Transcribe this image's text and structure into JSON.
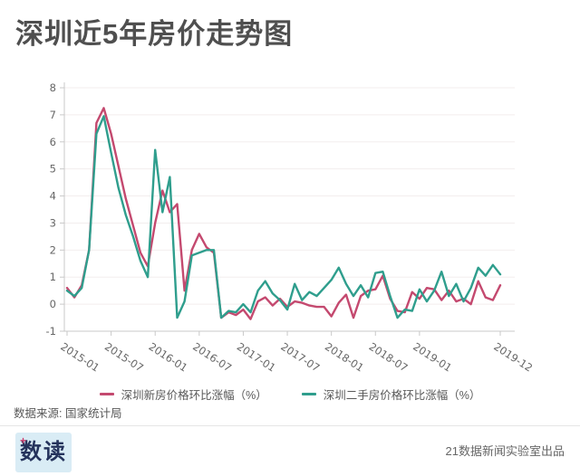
{
  "title": "深圳近5年房价走势图",
  "source_note": "数据来源: 国家统计局",
  "footer": {
    "logo_text": "数读",
    "logo_accent": "+",
    "credit": "21数据新闻实验室出品"
  },
  "colors": {
    "new_homes_line": "#c4496f",
    "secondhand_line": "#2f9e8d",
    "grid_line": "#f3eeee",
    "axis_line": "#c9c9c9",
    "tick_text": "#666666",
    "title_text": "#4f4f4f"
  },
  "chart_data": {
    "type": "line",
    "title": "深圳近5年房价走势图",
    "xlabel": "",
    "ylabel": "",
    "ylim": [
      -1,
      8
    ],
    "y_ticks": [
      -1,
      0,
      1,
      2,
      3,
      4,
      5,
      6,
      7,
      8
    ],
    "grid": "horizontal",
    "legend_position": "bottom-center",
    "x": [
      "2015-01",
      "2015-02",
      "2015-03",
      "2015-04",
      "2015-05",
      "2015-06",
      "2015-07",
      "2015-08",
      "2015-09",
      "2015-10",
      "2015-11",
      "2015-12",
      "2016-01",
      "2016-02",
      "2016-03",
      "2016-04",
      "2016-05",
      "2016-06",
      "2016-07",
      "2016-08",
      "2016-09",
      "2016-10",
      "2016-11",
      "2016-12",
      "2017-01",
      "2017-02",
      "2017-03",
      "2017-04",
      "2017-05",
      "2017-06",
      "2017-07",
      "2017-08",
      "2017-09",
      "2017-10",
      "2017-11",
      "2017-12",
      "2018-01",
      "2018-02",
      "2018-03",
      "2018-04",
      "2018-05",
      "2018-06",
      "2018-07",
      "2018-08",
      "2018-09",
      "2018-10",
      "2018-11",
      "2018-12",
      "2019-01",
      "2019-02",
      "2019-03",
      "2019-04",
      "2019-05",
      "2019-06",
      "2019-07",
      "2019-08",
      "2019-09",
      "2019-10",
      "2019-11",
      "2019-12"
    ],
    "x_tick_labels": [
      "2015-01",
      "2015-07",
      "2016-01",
      "2016-07",
      "2017-01",
      "2017-07",
      "2018-01",
      "2018-07",
      "2019-01",
      "2019-12"
    ],
    "x_tick_indices": [
      0,
      6,
      12,
      18,
      24,
      30,
      36,
      42,
      48,
      59
    ],
    "series": [
      {
        "name": "深圳新房价格环比涨幅（%）",
        "color": "#c4496f",
        "values": [
          0.6,
          0.25,
          0.7,
          2.0,
          6.7,
          7.25,
          6.3,
          5.1,
          3.9,
          2.9,
          1.9,
          1.4,
          3.0,
          4.2,
          3.4,
          3.7,
          0.5,
          2.0,
          2.6,
          2.1,
          1.9,
          -0.5,
          -0.3,
          -0.4,
          -0.2,
          -0.55,
          0.1,
          0.25,
          -0.05,
          0.2,
          -0.1,
          0.1,
          0.05,
          -0.05,
          -0.1,
          -0.1,
          -0.45,
          0.05,
          0.35,
          -0.5,
          0.3,
          0.5,
          0.55,
          1.05,
          0.2,
          -0.25,
          -0.3,
          0.45,
          0.2,
          0.6,
          0.55,
          0.15,
          0.5,
          0.1,
          0.2,
          0.0,
          0.85,
          0.25,
          0.15,
          0.7
        ]
      },
      {
        "name": "深圳二手房价格环比涨幅（%）",
        "color": "#2f9e8d",
        "values": [
          0.5,
          0.3,
          0.6,
          2.0,
          6.3,
          6.95,
          5.6,
          4.3,
          3.3,
          2.5,
          1.6,
          1.0,
          5.7,
          3.4,
          4.7,
          -0.5,
          0.1,
          1.8,
          1.9,
          2.0,
          2.0,
          -0.5,
          -0.25,
          -0.3,
          0.0,
          -0.3,
          0.5,
          0.85,
          0.4,
          0.15,
          -0.2,
          0.75,
          0.15,
          0.45,
          0.3,
          0.6,
          0.9,
          1.35,
          0.75,
          0.3,
          0.7,
          0.25,
          1.15,
          1.2,
          0.3,
          -0.5,
          -0.2,
          -0.25,
          0.55,
          0.1,
          0.5,
          1.2,
          0.3,
          0.75,
          0.1,
          0.6,
          1.35,
          1.05,
          1.45,
          1.1
        ]
      }
    ]
  }
}
